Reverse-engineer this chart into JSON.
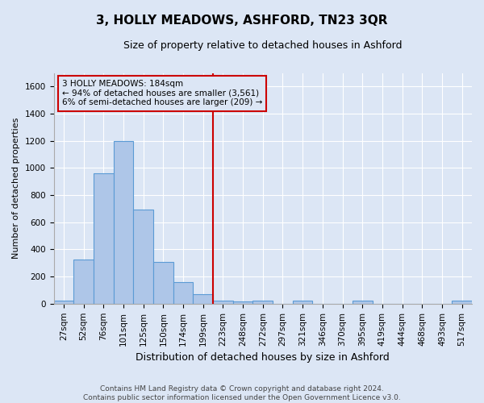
{
  "title": "3, HOLLY MEADOWS, ASHFORD, TN23 3QR",
  "subtitle": "Size of property relative to detached houses in Ashford",
  "xlabel": "Distribution of detached houses by size in Ashford",
  "ylabel": "Number of detached properties",
  "footer1": "Contains HM Land Registry data © Crown copyright and database right 2024.",
  "footer2": "Contains public sector information licensed under the Open Government Licence v3.0.",
  "annotation_title": "3 HOLLY MEADOWS: 184sqm",
  "annotation_line1": "← 94% of detached houses are smaller (3,561)",
  "annotation_line2": "6% of semi-detached houses are larger (209) →",
  "bar_color": "#aec6e8",
  "bar_edge_color": "#5b9bd5",
  "annotation_box_color": "#cc0000",
  "vline_color": "#cc0000",
  "background_color": "#dce6f5",
  "grid_color": "#ffffff",
  "categories": [
    "27sqm",
    "52sqm",
    "76sqm",
    "101sqm",
    "125sqm",
    "150sqm",
    "174sqm",
    "199sqm",
    "223sqm",
    "248sqm",
    "272sqm",
    "297sqm",
    "321sqm",
    "346sqm",
    "370sqm",
    "395sqm",
    "419sqm",
    "444sqm",
    "468sqm",
    "493sqm",
    "517sqm"
  ],
  "values": [
    25,
    325,
    960,
    1200,
    695,
    310,
    160,
    70,
    25,
    15,
    20,
    0,
    25,
    0,
    0,
    20,
    0,
    0,
    0,
    0,
    20
  ],
  "ylim": [
    0,
    1700
  ],
  "yticks": [
    0,
    200,
    400,
    600,
    800,
    1000,
    1200,
    1400,
    1600
  ],
  "vline_x_index": 7.5,
  "figsize": [
    6.0,
    5.0
  ],
  "dpi": 100,
  "title_fontsize": 11,
  "subtitle_fontsize": 9,
  "tick_fontsize": 7.5,
  "ylabel_fontsize": 8,
  "xlabel_fontsize": 9,
  "annotation_fontsize": 7.5,
  "footer_fontsize": 6.5
}
